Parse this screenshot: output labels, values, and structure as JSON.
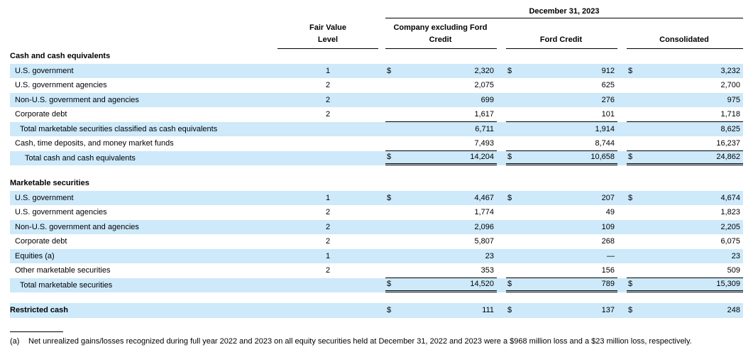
{
  "colors": {
    "row_shade": "#cde9fa",
    "text": "#000000",
    "rule": "#000000"
  },
  "table": {
    "currency_symbol": "$",
    "date_header": "December 31, 2023",
    "columns": {
      "fair_value_level_line1": "Fair Value",
      "fair_value_level_line2": "Level",
      "company_line1": "Company excluding Ford",
      "company_line2": "Credit",
      "ford_credit": "Ford Credit",
      "consolidated": "Consolidated"
    },
    "rows": [
      {
        "kind": "section",
        "label": "Cash and cash equivalents",
        "indent": 0,
        "shaded": false
      },
      {
        "kind": "data",
        "label": "U.S. government",
        "indent": 1,
        "level": "1",
        "dollar": true,
        "values": [
          "2,320",
          "912",
          "3,232"
        ],
        "shaded": true
      },
      {
        "kind": "data",
        "label": "U.S. government agencies",
        "indent": 1,
        "level": "2",
        "dollar": false,
        "values": [
          "2,075",
          "625",
          "2,700"
        ],
        "shaded": false
      },
      {
        "kind": "data",
        "label": "Non-U.S. government and agencies",
        "indent": 1,
        "level": "2",
        "dollar": false,
        "values": [
          "699",
          "276",
          "975"
        ],
        "shaded": true
      },
      {
        "kind": "data",
        "label": "Corporate debt",
        "indent": 1,
        "level": "2",
        "dollar": false,
        "values": [
          "1,617",
          "101",
          "1,718"
        ],
        "shaded": false,
        "border": "single"
      },
      {
        "kind": "data",
        "label": "Total marketable securities classified as cash equivalents",
        "indent": 2,
        "level": "",
        "dollar": false,
        "values": [
          "6,711",
          "1,914",
          "8,625"
        ],
        "shaded": true
      },
      {
        "kind": "data",
        "label": "Cash, time deposits, and money market funds",
        "indent": 1,
        "level": "",
        "dollar": false,
        "values": [
          "7,493",
          "8,744",
          "16,237"
        ],
        "shaded": false,
        "border": "single"
      },
      {
        "kind": "data",
        "label": "Total cash and cash equivalents",
        "indent": 3,
        "level": "",
        "dollar": true,
        "values": [
          "14,204",
          "10,658",
          "24,862"
        ],
        "shaded": true,
        "border": "double"
      },
      {
        "kind": "spacer"
      },
      {
        "kind": "section",
        "label": "Marketable securities",
        "indent": 0,
        "shaded": false
      },
      {
        "kind": "data",
        "label": "U.S. government",
        "indent": 1,
        "level": "1",
        "dollar": true,
        "values": [
          "4,467",
          "207",
          "4,674"
        ],
        "shaded": true
      },
      {
        "kind": "data",
        "label": "U.S. government agencies",
        "indent": 1,
        "level": "2",
        "dollar": false,
        "values": [
          "1,774",
          "49",
          "1,823"
        ],
        "shaded": false
      },
      {
        "kind": "data",
        "label": "Non-U.S. government and agencies",
        "indent": 1,
        "level": "2",
        "dollar": false,
        "values": [
          "2,096",
          "109",
          "2,205"
        ],
        "shaded": true
      },
      {
        "kind": "data",
        "label": "Corporate debt",
        "indent": 1,
        "level": "2",
        "dollar": false,
        "values": [
          "5,807",
          "268",
          "6,075"
        ],
        "shaded": false
      },
      {
        "kind": "data",
        "label": "Equities (a)",
        "indent": 1,
        "level": "1",
        "dollar": false,
        "values": [
          "23",
          "—",
          "23"
        ],
        "shaded": true
      },
      {
        "kind": "data",
        "label": "Other marketable securities",
        "indent": 1,
        "level": "2",
        "dollar": false,
        "values": [
          "353",
          "156",
          "509"
        ],
        "shaded": false,
        "border": "single"
      },
      {
        "kind": "data",
        "label": "Total marketable securities",
        "indent": 2,
        "level": "",
        "dollar": true,
        "values": [
          "14,520",
          "789",
          "15,309"
        ],
        "shaded": true,
        "border": "double"
      },
      {
        "kind": "spacer"
      },
      {
        "kind": "data",
        "label": "Restricted cash",
        "indent": 0,
        "bold": true,
        "level": "",
        "dollar": true,
        "values": [
          "111",
          "137",
          "248"
        ],
        "shaded": true
      }
    ]
  },
  "footnote": {
    "marker": "(a)",
    "text": "Net unrealized gains/losses recognized during full year 2022 and 2023 on all equity securities held at December 31, 2022 and 2023 were a $968 million loss and a $23 million loss, respectively."
  }
}
